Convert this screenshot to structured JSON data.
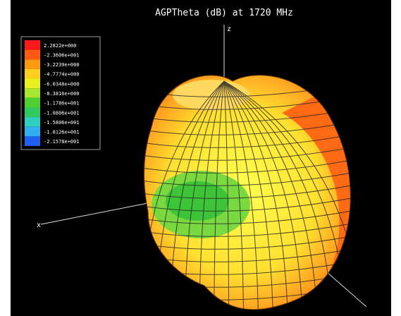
{
  "title": "AGPTheta (dB) at 1720 MHz",
  "axes": {
    "z": "z",
    "x": "x"
  },
  "legend": {
    "entries": [
      {
        "label": "2.2822e+000",
        "color": "#ff1a1a"
      },
      {
        "label": "-2.3606e+001",
        "color": "#ff5a10"
      },
      {
        "label": "-3.2239e+000",
        "color": "#ff9a10"
      },
      {
        "label": "-4.7774e+000",
        "color": "#ffd020"
      },
      {
        "label": "-6.0348e+000",
        "color": "#e8f020"
      },
      {
        "label": "-8.3816e+000",
        "color": "#a8e830"
      },
      {
        "label": "-1.1786e+001",
        "color": "#50d030"
      },
      {
        "label": "-1.0806e+001",
        "color": "#30c860"
      },
      {
        "label": "-1.5806e+001",
        "color": "#30d0c0"
      },
      {
        "label": "-1.8126e+001",
        "color": "#30b0f0"
      },
      {
        "label": "-2.1578e+001",
        "color": "#2060f0"
      }
    ]
  }
}
